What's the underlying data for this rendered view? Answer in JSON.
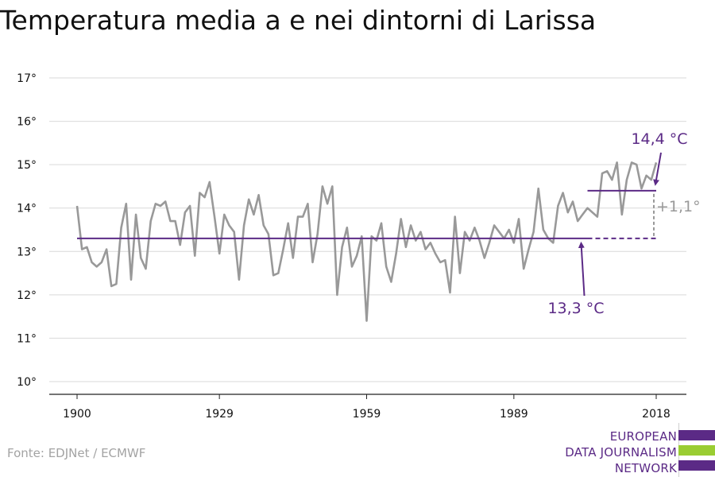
{
  "chart_data": {
    "type": "line",
    "title": "Temperatura media a e nei dintorni di Larissa",
    "xlabel": "",
    "ylabel": "",
    "xlim": [
      1900,
      2018
    ],
    "ylim": [
      10,
      17
    ],
    "x_ticks": [
      1900,
      1929,
      1959,
      1989,
      2018
    ],
    "y_ticks": [
      {
        "value": 10,
        "label": "10°"
      },
      {
        "value": 11,
        "label": "11°"
      },
      {
        "value": 12,
        "label": "12°"
      },
      {
        "value": 13,
        "label": "13°"
      },
      {
        "value": 14,
        "label": "14°"
      },
      {
        "value": 15,
        "label": "15°"
      },
      {
        "value": 16,
        "label": "16°"
      },
      {
        "value": 17,
        "label": "17°"
      }
    ],
    "grid": true,
    "series": [
      {
        "x": [
          1900,
          1901,
          1902,
          1903,
          1904,
          1905,
          1906,
          1907,
          1908,
          1909,
          1910,
          1911,
          1912,
          1913,
          1914,
          1915,
          1916,
          1917,
          1918,
          1919,
          1920,
          1921,
          1922,
          1923,
          1924,
          1925,
          1926,
          1927,
          1928,
          1929,
          1930,
          1931,
          1932,
          1933,
          1934,
          1935,
          1936,
          1937,
          1938,
          1939,
          1940,
          1941,
          1942,
          1943,
          1944,
          1945,
          1946,
          1947,
          1948,
          1949,
          1950,
          1951,
          1952,
          1953,
          1954,
          1955,
          1956,
          1957,
          1958,
          1959,
          1960,
          1961,
          1962,
          1963,
          1964,
          1965,
          1966,
          1967,
          1968,
          1969,
          1970,
          1971,
          1972,
          1973,
          1974,
          1975,
          1976,
          1977,
          1978,
          1979,
          1980,
          1981,
          1982,
          1983,
          1984,
          1985,
          1986,
          1987,
          1988,
          1989,
          1990,
          1991,
          1992,
          1993,
          1994,
          1995,
          1996,
          1997,
          1998,
          1999,
          2000,
          2001,
          2002,
          2003,
          2004,
          2005,
          2006,
          2007,
          2008,
          2009,
          2010,
          2011,
          2012,
          2013,
          2014,
          2015,
          2016,
          2017,
          2018
        ],
        "values": [
          14.05,
          13.05,
          13.1,
          12.75,
          12.65,
          12.75,
          13.05,
          12.2,
          12.25,
          13.55,
          14.1,
          12.35,
          13.85,
          12.85,
          12.6,
          13.7,
          14.1,
          14.05,
          14.15,
          13.7,
          13.7,
          13.15,
          13.9,
          14.05,
          12.9,
          14.35,
          14.25,
          14.6,
          13.8,
          12.95,
          13.85,
          13.6,
          13.45,
          12.35,
          13.6,
          14.2,
          13.85,
          14.3,
          13.6,
          13.4,
          12.45,
          12.5,
          13.05,
          13.65,
          12.85,
          13.8,
          13.8,
          14.1,
          12.75,
          13.4,
          14.5,
          14.1,
          14.5,
          12.0,
          13.1,
          13.55,
          12.65,
          12.9,
          13.35,
          11.4,
          13.35,
          13.25,
          13.65,
          12.65,
          12.3,
          12.95,
          13.75,
          13.1,
          13.6,
          13.25,
          13.45,
          13.05,
          13.2,
          12.95,
          12.75,
          12.8,
          12.05,
          13.8,
          12.5,
          13.45,
          13.25,
          13.55,
          13.25,
          12.85,
          13.2,
          13.6,
          13.45,
          13.3,
          13.5,
          13.2,
          13.75,
          12.6,
          13.05,
          13.45,
          14.45,
          13.5,
          13.3,
          13.2,
          14.05,
          14.35,
          13.9,
          14.15,
          13.7,
          13.85,
          14.0,
          13.9,
          13.8,
          14.8,
          14.85,
          14.65,
          15.05,
          13.85,
          14.65,
          15.05,
          15.0,
          14.45,
          14.75,
          14.65,
          15.05
        ]
      }
    ],
    "annotations": {
      "baseline": {
        "value": 13.3,
        "label": "13,3 °C",
        "x_start": 1900,
        "x_end": 2004
      },
      "recent": {
        "value": 14.4,
        "label": "14,4 °C",
        "x_start": 2004,
        "x_end": 2018
      },
      "difference_label": "+1,1°"
    },
    "colors": {
      "line": "#999999",
      "accent": "#5b2a86",
      "grid": "#d9d9d9",
      "axis": "#222222"
    }
  },
  "footer": {
    "source": "Fonte: EDJNet / ECMWF"
  },
  "logo": {
    "lines": [
      "EUROPEAN",
      "DATA JOURNALISM",
      "NETWORK"
    ],
    "colors": {
      "purple": "#5b2a86",
      "green": "#9acd32"
    }
  }
}
